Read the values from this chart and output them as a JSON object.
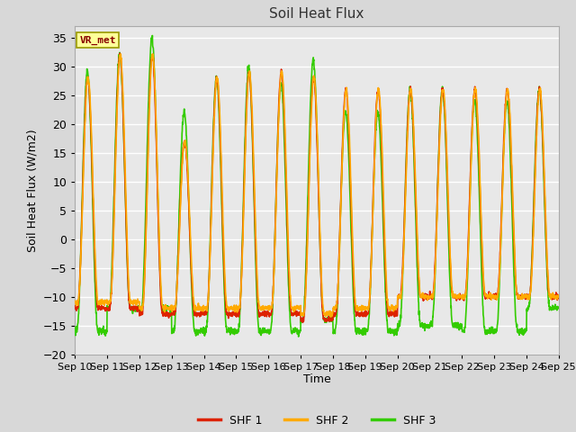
{
  "title": "Soil Heat Flux",
  "xlabel": "Time",
  "ylabel": "Soil Heat Flux (W/m2)",
  "ylim": [
    -20,
    37
  ],
  "yticks": [
    -20,
    -15,
    -10,
    -5,
    0,
    5,
    10,
    15,
    20,
    25,
    30,
    35
  ],
  "n_days": 15,
  "start_day": 10,
  "colors": {
    "SHF 1": "#dd2200",
    "SHF 2": "#ffaa00",
    "SHF 3": "#33cc00"
  },
  "line_width": 1.2,
  "bg_color": "#d8d8d8",
  "plot_bg": "#e8e8e8",
  "grid_color": "#ffffff",
  "annotation_text": "VR_met",
  "annotation_bg": "#ffff99",
  "annotation_border": "#999900",
  "legend_entries": [
    "SHF 1",
    "SHF 2",
    "SHF 3"
  ],
  "shf1_peaks": [
    28,
    32,
    32,
    17,
    28,
    29,
    29,
    28,
    26,
    26,
    26,
    26,
    26,
    26,
    26
  ],
  "shf2_peaks": [
    28,
    32,
    32,
    17,
    28,
    29,
    29,
    28,
    26,
    26,
    26,
    26,
    26,
    26,
    26
  ],
  "shf3_peaks": [
    29,
    32,
    35,
    22,
    28,
    30,
    27,
    31,
    22,
    22,
    26,
    26,
    24,
    24,
    26
  ],
  "shf1_mins": [
    -12,
    -12,
    -13,
    -13,
    -13,
    -13,
    -13,
    -14,
    -13,
    -13,
    -10,
    -10,
    -10,
    -10,
    -10
  ],
  "shf2_mins": [
    -11,
    -11,
    -12,
    -12,
    -12,
    -12,
    -12,
    -13,
    -12,
    -12,
    -10,
    -10,
    -10,
    -10,
    -10
  ],
  "shf3_mins": [
    -16,
    -12,
    -12,
    -16,
    -16,
    -16,
    -16,
    -14,
    -16,
    -16,
    -15,
    -15,
    -16,
    -16,
    -12
  ]
}
